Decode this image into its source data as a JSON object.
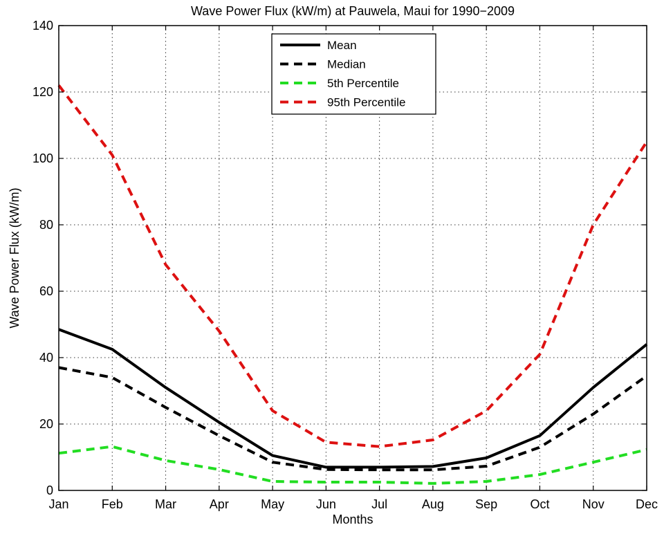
{
  "chart_data": {
    "type": "line",
    "title": "Wave Power Flux (kW/m) at Pauwela, Maui for 1990−2009",
    "xlabel": "Months",
    "ylabel": "Wave Power Flux (kW/m)",
    "categories": [
      "Jan",
      "Feb",
      "Mar",
      "Apr",
      "May",
      "Jun",
      "Jul",
      "Aug",
      "Sep",
      "Oct",
      "Nov",
      "Dec"
    ],
    "ylim": [
      0,
      140
    ],
    "yticks": [
      "0",
      "20",
      "40",
      "60",
      "80",
      "100",
      "120",
      "140"
    ],
    "grid": true,
    "legend_position": "top-center",
    "series": [
      {
        "name": "Mean",
        "style": "solid",
        "color": "#000000",
        "values": [
          48.5,
          42.5,
          31,
          20.5,
          10.5,
          7,
          7,
          7.2,
          9.8,
          16.5,
          31,
          44
        ]
      },
      {
        "name": "Median",
        "style": "dashed",
        "color": "#000000",
        "values": [
          37,
          34,
          25,
          16.5,
          8.5,
          6.3,
          6.2,
          6.2,
          7.3,
          13,
          23,
          34.5
        ]
      },
      {
        "name": "5th Percentile",
        "style": "dashed",
        "color": "#22dd22",
        "values": [
          11.2,
          13.2,
          9,
          6.3,
          2.7,
          2.5,
          2.5,
          2.1,
          2.7,
          4.8,
          8.5,
          12.3
        ]
      },
      {
        "name": "95th Percentile",
        "style": "dashed",
        "color": "#dd1111",
        "values": [
          122,
          101,
          68,
          48,
          24,
          14.5,
          13.2,
          15.2,
          24,
          41,
          80,
          105
        ]
      }
    ]
  }
}
